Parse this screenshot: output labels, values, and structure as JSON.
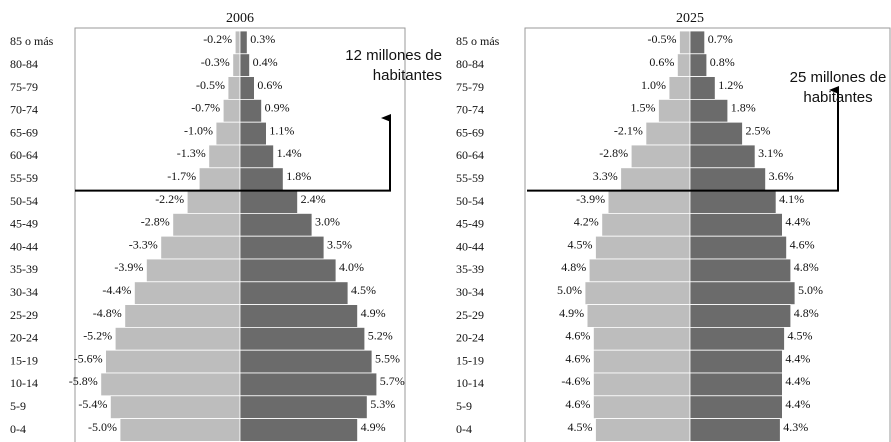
{
  "chart_data": [
    {
      "type": "pyramid",
      "title": "2006",
      "categories": [
        "85 o más",
        "80-84",
        "75-79",
        "70-74",
        "65-69",
        "60-64",
        "55-59",
        "50-54",
        "45-49",
        "40-44",
        "35-39",
        "30-34",
        "25-29",
        "20-24",
        "15-19",
        "10-14",
        "5-9",
        "0-4"
      ],
      "series": [
        {
          "color": "#bdbdbd",
          "values": [
            -0.2,
            -0.3,
            -0.5,
            -0.7,
            -1.0,
            -1.3,
            -1.7,
            -2.2,
            -2.8,
            -3.3,
            -3.9,
            -4.4,
            -4.8,
            -5.2,
            -5.6,
            -5.8,
            -5.4,
            -5.0
          ],
          "value_labels": [
            "-0.2%",
            "-0.3%",
            "-0.5%",
            "-0.7%",
            "-1.0%",
            "-1.3%",
            "-1.7%",
            "-2.2%",
            "-2.8%",
            "-3.3%",
            "-3.9%",
            "-4.4%",
            "-4.8%",
            "-5.2%",
            "-5.6%",
            "-5.8%",
            "-5.4%",
            "-5.0%"
          ]
        },
        {
          "color": "#6b6b6b",
          "values": [
            0.3,
            0.4,
            0.6,
            0.9,
            1.1,
            1.4,
            1.8,
            2.4,
            3.0,
            3.5,
            4.0,
            4.5,
            4.9,
            5.2,
            5.5,
            5.7,
            5.3,
            4.9
          ],
          "value_labels": [
            "0.3%",
            "0.4%",
            "0.6%",
            "0.9%",
            "1.1%",
            "1.4%",
            "1.8%",
            "2.4%",
            "3.0%",
            "3.5%",
            "4.0%",
            "4.5%",
            "4.9%",
            "5.2%",
            "5.5%",
            "5.7%",
            "5.3%",
            "4.9%"
          ]
        }
      ],
      "annotation": [
        "12 millones de",
        "habitantes"
      ]
    },
    {
      "type": "pyramid",
      "title": "2025",
      "categories": [
        "85 o más",
        "80-84",
        "75-79",
        "70-74",
        "65-69",
        "60-64",
        "55-59",
        "50-54",
        "45-49",
        "40-44",
        "35-39",
        "30-34",
        "25-29",
        "20-24",
        "15-19",
        "10-14",
        "5-9",
        "0-4"
      ],
      "series": [
        {
          "color": "#bdbdbd",
          "values": [
            -0.5,
            0.6,
            1.0,
            1.5,
            -2.1,
            -2.8,
            3.3,
            -3.9,
            4.2,
            4.5,
            4.8,
            5.0,
            4.9,
            4.6,
            4.6,
            -4.6,
            4.6,
            4.5
          ],
          "value_labels": [
            "-0.5%",
            "0.6%",
            "1.0%",
            "1.5%",
            "-2.1%",
            "-2.8%",
            "3.3%",
            "-3.9%",
            "4.2%",
            "4.5%",
            "4.8%",
            "5.0%",
            "4.9%",
            "4.6%",
            "4.6%",
            "-4.6%",
            "4.6%",
            "4.5%"
          ]
        },
        {
          "color": "#6b6b6b",
          "values": [
            0.7,
            0.8,
            1.2,
            1.8,
            2.5,
            3.1,
            3.6,
            4.1,
            4.4,
            4.6,
            4.8,
            5.0,
            4.8,
            4.5,
            4.4,
            4.4,
            4.4,
            4.3
          ],
          "value_labels": [
            "0.7%",
            "0.8%",
            "1.2%",
            "1.8%",
            "2.5%",
            "3.1%",
            "3.6%",
            "4.1%",
            "4.4%",
            "4.6%",
            "4.8%",
            "5.0%",
            "4.8%",
            "4.5%",
            "4.4%",
            "4.4%",
            "4.4%",
            "4.3%"
          ]
        }
      ],
      "annotation": [
        "25 millones de",
        "habitantes"
      ]
    }
  ]
}
